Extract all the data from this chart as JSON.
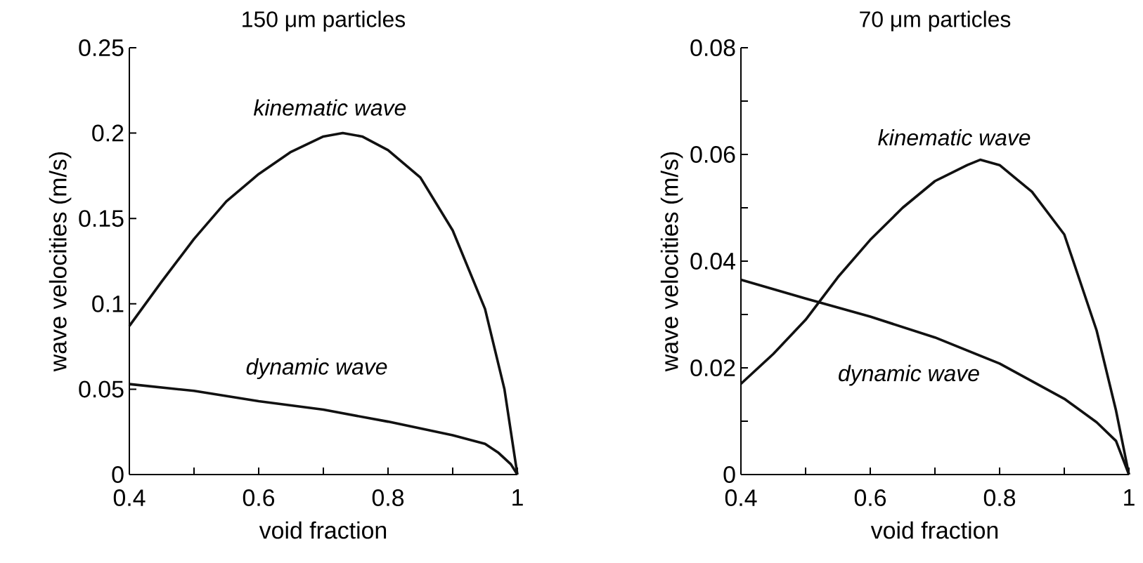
{
  "chart_data": [
    {
      "type": "line",
      "title": "150 μm particles",
      "xlabel": "void fraction",
      "ylabel": "wave velocities (m/s)",
      "xlim": [
        0.4,
        1
      ],
      "ylim": [
        0,
        0.25
      ],
      "xticks": [
        0.4,
        {
          "value": 0.5,
          "label": null
        },
        0.6,
        {
          "value": 0.7,
          "label": null
        },
        0.8,
        {
          "value": 0.9,
          "label": null
        },
        1
      ],
      "yticks": [
        0,
        0.05,
        0.1,
        0.15,
        0.2,
        0.25
      ],
      "series": [
        {
          "name": "*kinematic wave*",
          "color": "#111111",
          "x": [
            0.4,
            0.45,
            0.5,
            0.55,
            0.6,
            0.65,
            0.7,
            0.73,
            0.76,
            0.8,
            0.85,
            0.9,
            0.95,
            0.98,
            1.0
          ],
          "values": [
            0.087,
            0.113,
            0.138,
            0.16,
            0.176,
            0.189,
            0.198,
            0.2,
            0.198,
            0.19,
            0.174,
            0.143,
            0.097,
            0.05,
            0
          ]
        },
        {
          "name": "*dynamic wave*",
          "color": "#111111",
          "x": [
            0.4,
            0.5,
            0.6,
            0.7,
            0.8,
            0.9,
            0.95,
            0.97,
            0.99,
            1.0
          ],
          "values": [
            0.053,
            0.049,
            0.043,
            0.038,
            0.031,
            0.023,
            0.018,
            0.013,
            0.006,
            0
          ]
        }
      ]
    },
    {
      "type": "line",
      "title": "70 μm particles",
      "xlabel": "void fraction",
      "ylabel": "wave velocities (m/s)",
      "xlim": [
        0.4,
        1
      ],
      "ylim": [
        0,
        0.08
      ],
      "xticks": [
        0.4,
        {
          "value": 0.5,
          "label": null
        },
        0.6,
        {
          "value": 0.7,
          "label": null
        },
        0.8,
        {
          "value": 0.9,
          "label": null
        },
        1
      ],
      "yticks": [
        0,
        {
          "value": 0.01,
          "label": null
        },
        0.02,
        {
          "value": 0.03,
          "label": null
        },
        0.04,
        {
          "value": 0.05,
          "label": null
        },
        0.06,
        {
          "value": 0.07,
          "label": null
        },
        0.08
      ],
      "series": [
        {
          "name": "*kinematic wave*",
          "color": "#111111",
          "x": [
            0.4,
            0.45,
            0.5,
            0.55,
            0.6,
            0.65,
            0.7,
            0.75,
            0.77,
            0.8,
            0.85,
            0.9,
            0.95,
            0.98,
            1.0
          ],
          "values": [
            0.017,
            0.0226,
            0.029,
            0.037,
            0.044,
            0.05,
            0.055,
            0.058,
            0.059,
            0.058,
            0.053,
            0.045,
            0.027,
            0.012,
            0
          ]
        },
        {
          "name": "*dynamic wave*",
          "color": "#111111",
          "x": [
            0.4,
            0.5,
            0.6,
            0.7,
            0.8,
            0.9,
            0.95,
            0.98,
            1.0
          ],
          "values": [
            0.0365,
            0.033,
            0.0296,
            0.0257,
            0.0208,
            0.0142,
            0.0098,
            0.0063,
            0
          ]
        }
      ]
    }
  ]
}
